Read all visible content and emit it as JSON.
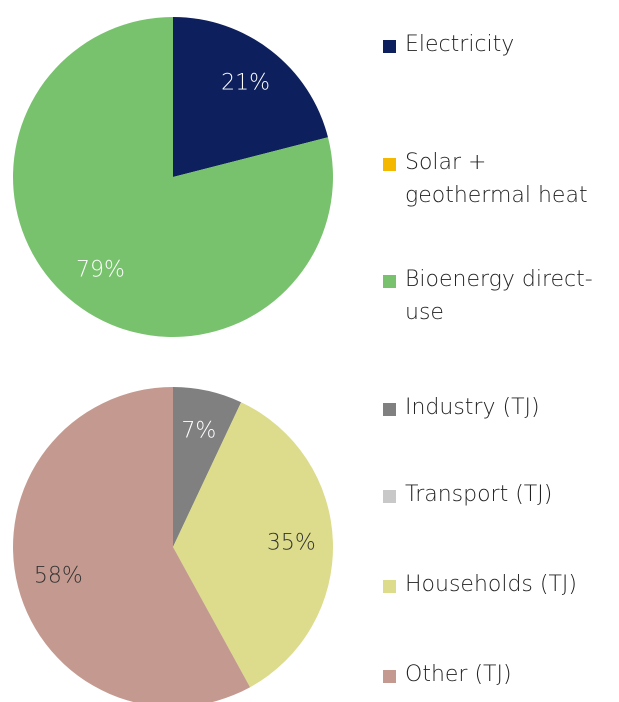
{
  "chart_data": [
    {
      "type": "pie",
      "categories": [
        "Electricity",
        "Solar + geothermal heat",
        "Bioenergy direct-use"
      ],
      "values": [
        21,
        0,
        79
      ],
      "value_labels": [
        "21%",
        null,
        "79%"
      ],
      "colors": [
        "#0d1f5c",
        "#f5b800",
        "#78c26e"
      ]
    },
    {
      "type": "pie",
      "categories": [
        "Industry (TJ)",
        "Transport (TJ)",
        "Households (TJ)",
        "Other (TJ)"
      ],
      "values": [
        7,
        0,
        35,
        58
      ],
      "value_labels": [
        "7%",
        null,
        "35%",
        "58%"
      ],
      "colors": [
        "#808080",
        "#c8c8c8",
        "#dcdc8c",
        "#c49a90"
      ]
    }
  ]
}
